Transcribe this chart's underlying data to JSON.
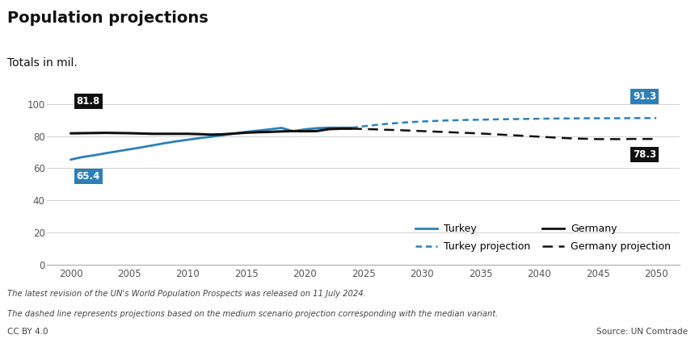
{
  "title": "Population projections",
  "subtitle": "Totals in mil.",
  "turkey_historical_years": [
    2000,
    2001,
    2002,
    2003,
    2004,
    2005,
    2006,
    2007,
    2008,
    2009,
    2010,
    2011,
    2012,
    2013,
    2014,
    2015,
    2016,
    2017,
    2018,
    2019,
    2020,
    2021,
    2022,
    2023,
    2024
  ],
  "turkey_historical_values": [
    65.4,
    67.0,
    68.1,
    69.4,
    70.6,
    71.8,
    73.0,
    74.3,
    75.6,
    76.8,
    77.8,
    78.8,
    79.7,
    80.7,
    81.7,
    82.7,
    83.5,
    84.3,
    85.2,
    83.1,
    84.3,
    85.0,
    85.3,
    85.3,
    85.3
  ],
  "turkey_projection_years": [
    2024,
    2025,
    2026,
    2027,
    2028,
    2029,
    2030,
    2031,
    2032,
    2033,
    2034,
    2035,
    2036,
    2037,
    2038,
    2039,
    2040,
    2041,
    2042,
    2043,
    2044,
    2045,
    2046,
    2047,
    2048,
    2049,
    2050
  ],
  "turkey_projection_values": [
    85.3,
    86.2,
    87.0,
    87.7,
    88.3,
    88.8,
    89.2,
    89.5,
    89.8,
    90.0,
    90.2,
    90.3,
    90.5,
    90.6,
    90.7,
    90.8,
    90.9,
    91.0,
    91.1,
    91.1,
    91.2,
    91.2,
    91.2,
    91.2,
    91.3,
    91.3,
    91.3
  ],
  "germany_historical_years": [
    2000,
    2001,
    2002,
    2003,
    2004,
    2005,
    2006,
    2007,
    2008,
    2009,
    2010,
    2011,
    2012,
    2013,
    2014,
    2015,
    2016,
    2017,
    2018,
    2019,
    2020,
    2021,
    2022,
    2023,
    2024
  ],
  "germany_historical_values": [
    81.8,
    81.9,
    82.0,
    82.1,
    82.0,
    81.9,
    81.7,
    81.5,
    81.5,
    81.5,
    81.5,
    81.3,
    81.0,
    81.2,
    81.7,
    82.2,
    82.5,
    82.7,
    83.0,
    83.2,
    83.1,
    83.2,
    84.4,
    84.7,
    84.7
  ],
  "germany_projection_years": [
    2024,
    2025,
    2026,
    2027,
    2028,
    2029,
    2030,
    2031,
    2032,
    2033,
    2034,
    2035,
    2036,
    2037,
    2038,
    2039,
    2040,
    2041,
    2042,
    2043,
    2044,
    2045,
    2046,
    2047,
    2048,
    2049,
    2050
  ],
  "germany_projection_values": [
    84.7,
    84.5,
    84.3,
    84.0,
    83.8,
    83.5,
    83.2,
    82.9,
    82.6,
    82.3,
    82.0,
    81.7,
    81.3,
    80.9,
    80.5,
    80.1,
    79.7,
    79.3,
    78.9,
    78.6,
    78.4,
    78.2,
    78.2,
    78.2,
    78.3,
    78.3,
    78.3
  ],
  "turkey_color": "#2e7fb8",
  "germany_color": "#111111",
  "turkey_start_label": "65.4",
  "turkey_end_label": "91.3",
  "germany_start_label": "81.8",
  "germany_end_label": "78.3",
  "ylim": [
    0,
    110
  ],
  "yticks": [
    0,
    20,
    40,
    60,
    80,
    100
  ],
  "xlim": [
    1998,
    2052
  ],
  "xticks": [
    2000,
    2005,
    2010,
    2015,
    2020,
    2025,
    2030,
    2035,
    2040,
    2045,
    2050
  ],
  "footnote1": "The latest revision of the UN's World Population Prospects was released on 11 July 2024.",
  "footnote2": "The dashed line represents projections based on the medium scenario projection corresponding with the median variant.",
  "source": "Source: UN Comtrade",
  "license": "CC BY 4.0",
  "legend_turkey": "Turkey",
  "legend_turkey_proj": "Turkey projection",
  "legend_germany": "Germany",
  "legend_germany_proj": "Germany projection",
  "background_color": "#ffffff",
  "grid_color": "#d0d0d0"
}
